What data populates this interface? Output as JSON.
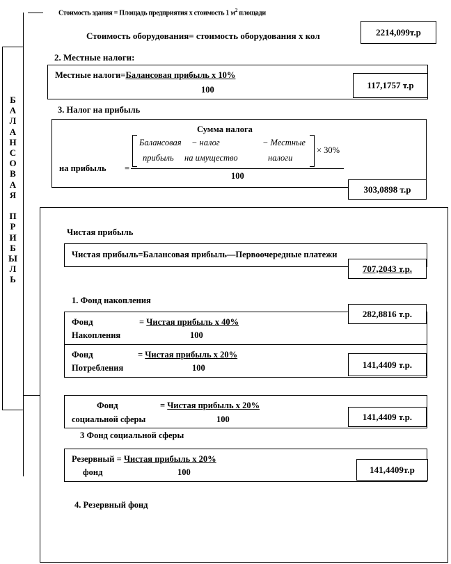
{
  "top": {
    "building_formula": "Стоимость здания = Площадь предприятия х стоимость 1 м",
    "building_formula_sup": "2",
    "building_formula_end": " площади",
    "equipment_formula": "Стоимость оборудования= стоимость оборудования х кол",
    "equipment_value": "2214,099т.р"
  },
  "sidebar": {
    "letters": [
      "Б",
      "А",
      "Л",
      "А",
      "Н",
      "С",
      "О",
      "В",
      "А",
      "Я",
      "",
      "П",
      "Р",
      "И",
      "Б",
      "Ы",
      "Л",
      "Ь"
    ]
  },
  "local_taxes": {
    "heading": "2. Местные налоги:",
    "lhs": "Местные налоги=",
    "numerator": "Балансовая прибыль х 10%",
    "denominator": "100",
    "value": "117,1757 т.р"
  },
  "profit_tax": {
    "heading": "3. Налог на прибыль",
    "title": "Сумма налога",
    "lhs": "на прибыль",
    "eq": "=",
    "row1": [
      "Балансовая",
      "− налог",
      "− Местные"
    ],
    "row2": [
      "прибыль",
      "на имущество",
      "налоги"
    ],
    "multiplier": "× 30%",
    "denominator": "100",
    "value": "303,0898 т.р"
  },
  "net_profit": {
    "heading": "Чистая прибыль",
    "formula": "Чистая прибыль=Балансовая прибыль—Первоочередные платежи",
    "value": "707,2043 т.р."
  },
  "funds": {
    "heading1": "1. Фонд накопления",
    "accumulation": {
      "l1": "Фонд",
      "l2": "Накопления",
      "eq": "= ",
      "numerator": "Чистая прибыль х 40%",
      "denominator": "100",
      "value": "282,8816 т.р."
    },
    "consumption": {
      "l1": "Фонд",
      "l2": "Потребления",
      "eq": "= ",
      "numerator": "Чистая прибыль х 20%",
      "denominator": "100",
      "value": "141,4409 т.р."
    },
    "social": {
      "l1": "Фонд",
      "l2": "социальной сферы",
      "eq": "= ",
      "numerator": "Чистая прибыль х 20%",
      "denominator": "100",
      "value": "141,4409 т.р."
    },
    "heading3": "3 Фонд социальной сферы",
    "reserve": {
      "l1": "Резервный",
      "l2": "фонд",
      "eq": " = ",
      "numerator": "Чистая прибыль х 20%",
      "denominator": "100",
      "value": "141,4409т.р"
    },
    "heading4": "4. Резервный фонд"
  }
}
